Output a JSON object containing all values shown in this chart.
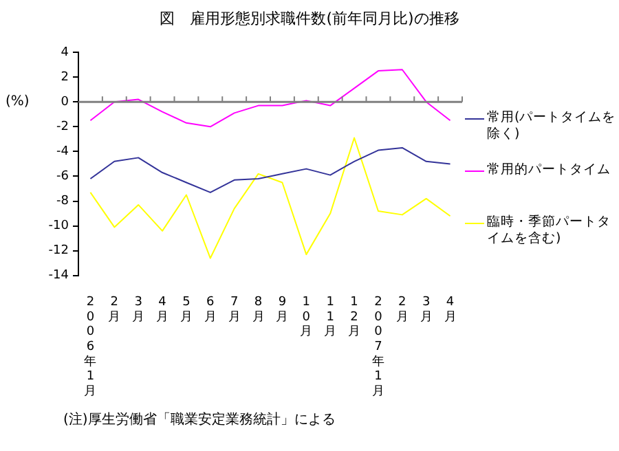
{
  "chart_data": {
    "type": "line",
    "title": "図　雇用形態別求職件数(前年同月比)の推移",
    "ylabel": "(%)",
    "categories": [
      "2006年1月",
      "2月",
      "3月",
      "4月",
      "5月",
      "6月",
      "7月",
      "8月",
      "9月",
      "10月",
      "11月",
      "12月",
      "2007年1月",
      "2月",
      "3月",
      "4月"
    ],
    "series": [
      {
        "name": "常用(パートタイムを除く)",
        "color": "#333399",
        "values": [
          -6.2,
          -4.8,
          -4.5,
          -5.7,
          -6.5,
          -7.3,
          -6.3,
          -6.2,
          -5.8,
          -5.4,
          -5.9,
          -4.8,
          -3.9,
          -3.7,
          -4.8,
          -5.0
        ]
      },
      {
        "name": "常用的パートタイム",
        "color": "#ff00ff",
        "values": [
          -1.5,
          0,
          0.2,
          -0.8,
          -1.7,
          -2.0,
          -0.9,
          -0.3,
          -0.3,
          0.1,
          -0.3,
          1.1,
          2.5,
          2.6,
          0,
          -1.5
        ]
      },
      {
        "name": "臨時・季節パートタイムを含む)",
        "color": "#ffff00",
        "values": [
          -7.3,
          -10.1,
          -8.3,
          -10.4,
          -7.5,
          -12.6,
          -8.6,
          -5.8,
          -6.5,
          -12.3,
          -9.0,
          -2.9,
          -8.8,
          -9.1,
          -7.8,
          -9.2
        ]
      }
    ],
    "ylim": [
      -14,
      4
    ],
    "yticks": [
      -14,
      -12,
      -10,
      -8,
      -6,
      -4,
      -2,
      0,
      2,
      4
    ],
    "legend": "right",
    "marker": "none",
    "line_style": "solid",
    "annotations": [
      "(注)厚生労働省「職業安定業務統計」による"
    ]
  }
}
